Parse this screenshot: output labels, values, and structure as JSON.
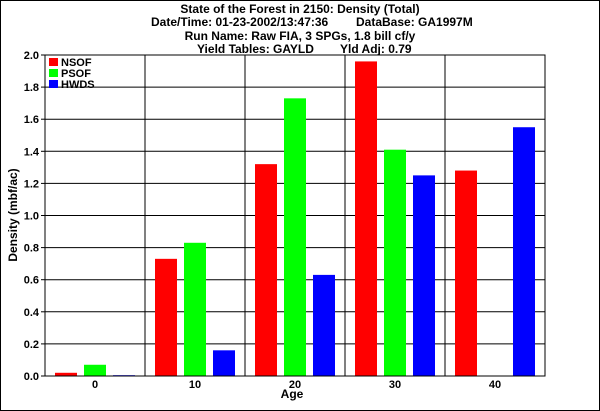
{
  "header": {
    "title": "State of the Forest in 2150: Density (Total)",
    "datetime": "Date/Time: 01-23-2002/13:47:36",
    "database": "DataBase: GA1997M",
    "run_name": "Run Name: Raw FIA, 3 SPGs, 1.8 bill cf/y",
    "yield_tables": "Yield Tables: GAYLD",
    "yld_adj": "Yld Adj: 0.79"
  },
  "chart_data": {
    "type": "bar",
    "xlabel": "Age",
    "ylabel": "Density (mbf/ac)",
    "ylim": [
      0,
      2.0
    ],
    "yticks": [
      "0.0",
      "0.2",
      "0.4",
      "0.6",
      "0.8",
      "1.0",
      "1.2",
      "1.4",
      "1.6",
      "1.8",
      "2.0"
    ],
    "categories": [
      "0",
      "10",
      "20",
      "30",
      "40"
    ],
    "series": [
      {
        "name": "NSOF",
        "color": "#ff0000",
        "values": [
          0.02,
          0.73,
          1.32,
          1.96,
          1.28
        ]
      },
      {
        "name": "PSOF",
        "color": "#00ff00",
        "values": [
          0.07,
          0.83,
          1.73,
          1.41,
          0.0
        ]
      },
      {
        "name": "HWDS",
        "color": "#0000ff",
        "values": [
          0.005,
          0.16,
          0.63,
          1.25,
          1.55
        ]
      }
    ],
    "grid": true,
    "legend_position": "top-left"
  }
}
